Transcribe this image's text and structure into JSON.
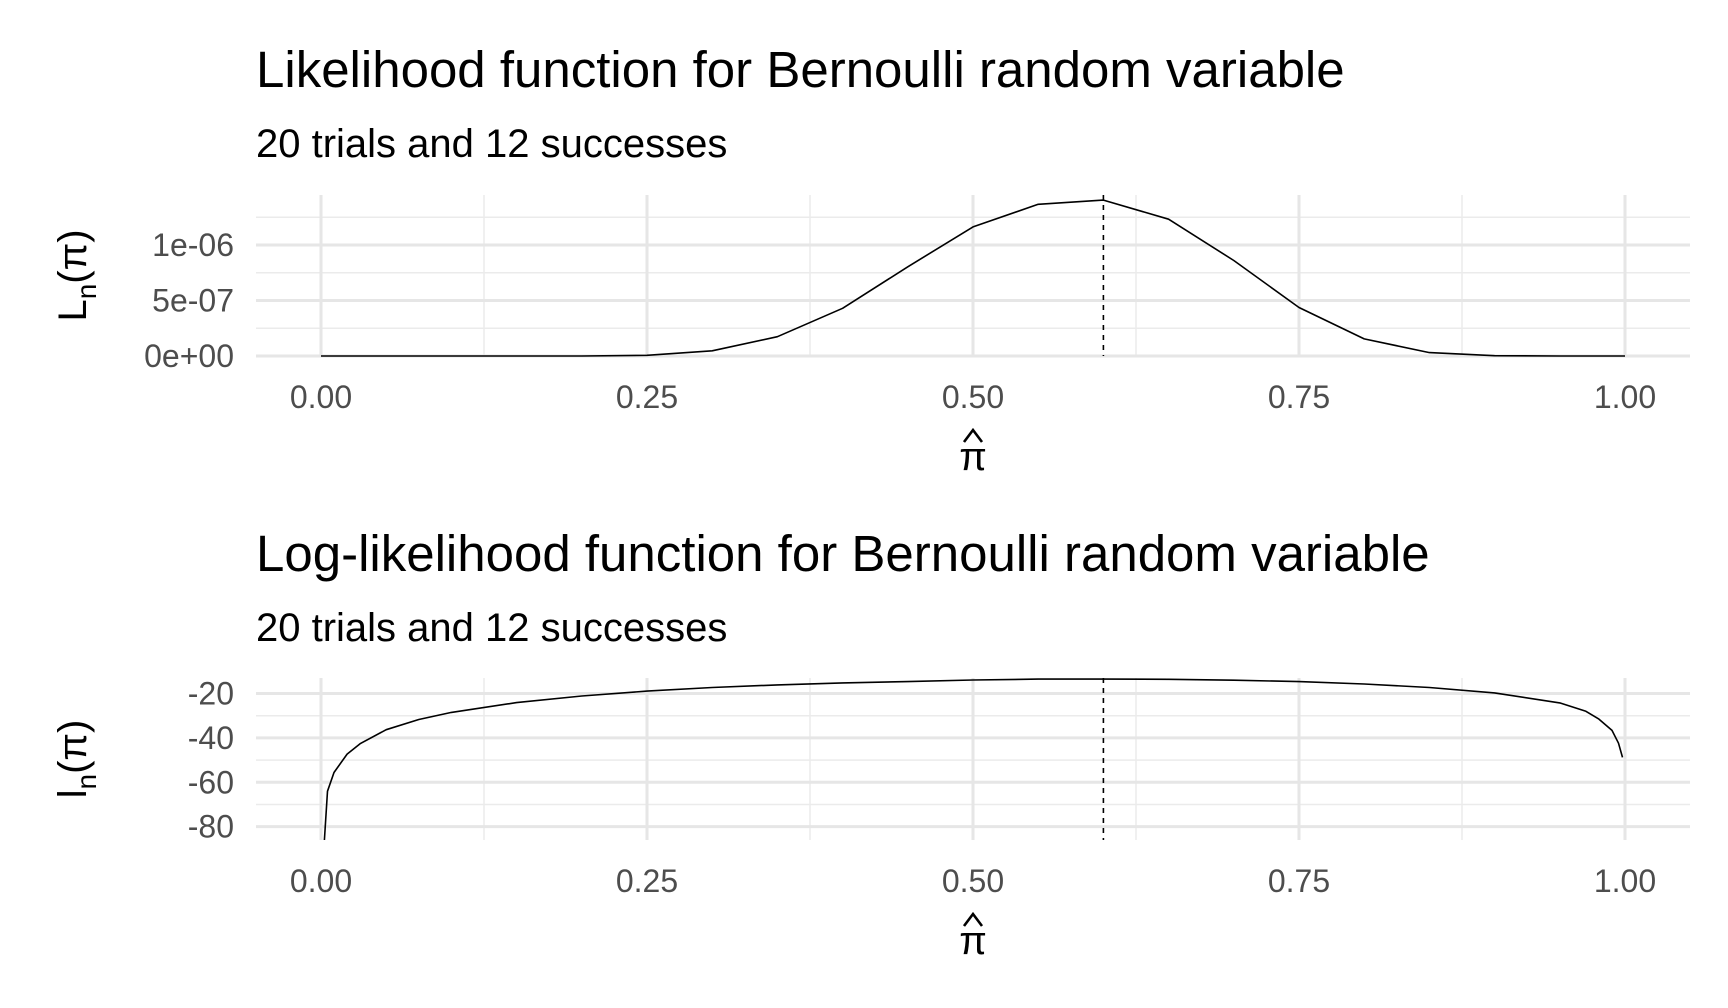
{
  "charts": [
    {
      "chart_data": {
        "type": "line",
        "title": "Likelihood function for Bernoulli random variable",
        "subtitle": "20 trials and 12 successes",
        "xlabel": "π̂",
        "ylabel": "Ln(π)",
        "xlim": [
          0,
          1
        ],
        "ylim": [
          0,
          1.45e-06
        ],
        "x_ticks": [
          0,
          0.25,
          0.5,
          0.75,
          1
        ],
        "x_tick_labels": [
          "0.00",
          "0.25",
          "0.50",
          "0.75",
          "1.00"
        ],
        "y_ticks": [
          0,
          5e-07,
          1e-06
        ],
        "y_tick_labels": [
          "0e+00",
          "5e-07",
          "1e-06"
        ],
        "grid": true,
        "vline": 0.6,
        "vline_style": "dashed",
        "series": [
          {
            "x": [
              0,
              0.05,
              0.1,
              0.15,
              0.2,
              0.25,
              0.3,
              0.35,
              0.4,
              0.45,
              0.5,
              0.55,
              0.6,
              0.65,
              0.7,
              0.75,
              0.8,
              0.85,
              0.9,
              0.95,
              1
            ],
            "values": [
              0,
              0,
              0,
              0,
              0,
              6e-09,
              4.7e-08,
              1.74e-07,
              4.3e-07,
              8.03e-07,
              1.163e-06,
              1.366e-06,
              1.404e-06,
              1.232e-06,
              8.6e-07,
              4.37e-07,
              1.54e-07,
              3.06e-08,
              2.3e-09,
              0,
              0
            ]
          }
        ]
      }
    },
    {
      "chart_data": {
        "type": "line",
        "title": "Log-likelihood function for Bernoulli random variable",
        "subtitle": "20 trials and 12 successes",
        "xlabel": "π̂",
        "ylabel": "ln(π)",
        "xlim": [
          0,
          1
        ],
        "ylim": [
          -86,
          -13
        ],
        "x_ticks": [
          0,
          0.25,
          0.5,
          0.75,
          1
        ],
        "x_tick_labels": [
          "0.00",
          "0.25",
          "0.50",
          "0.75",
          "1.00"
        ],
        "y_ticks": [
          -80,
          -60,
          -40,
          -20
        ],
        "y_tick_labels": [
          "-80",
          "-60",
          "-40",
          "-20"
        ],
        "grid": true,
        "vline": 0.6,
        "vline_style": "dashed",
        "series": [
          {
            "x": [
              0.0026,
              0.005,
              0.01,
              0.02,
              0.03,
              0.05,
              0.075,
              0.1,
              0.15,
              0.2,
              0.25,
              0.3,
              0.35,
              0.4,
              0.45,
              0.5,
              0.55,
              0.6,
              0.65,
              0.7,
              0.75,
              0.8,
              0.85,
              0.9,
              0.95,
              0.97,
              0.98,
              0.99,
              0.995,
              0.9981
            ],
            "values": [
              -86,
              -64,
              -55.6,
              -47.3,
              -42.6,
              -36.3,
              -31.7,
              -28.5,
              -24.1,
              -21.1,
              -18.9,
              -17.3,
              -16.1,
              -15.2,
              -14.6,
              -13.9,
              -13.5,
              -13.5,
              -13.6,
              -14.0,
              -14.6,
              -15.7,
              -17.3,
              -19.7,
              -24.2,
              -28.0,
              -31.5,
              -36.6,
              -42.4,
              -48.8
            ]
          }
        ]
      }
    }
  ]
}
